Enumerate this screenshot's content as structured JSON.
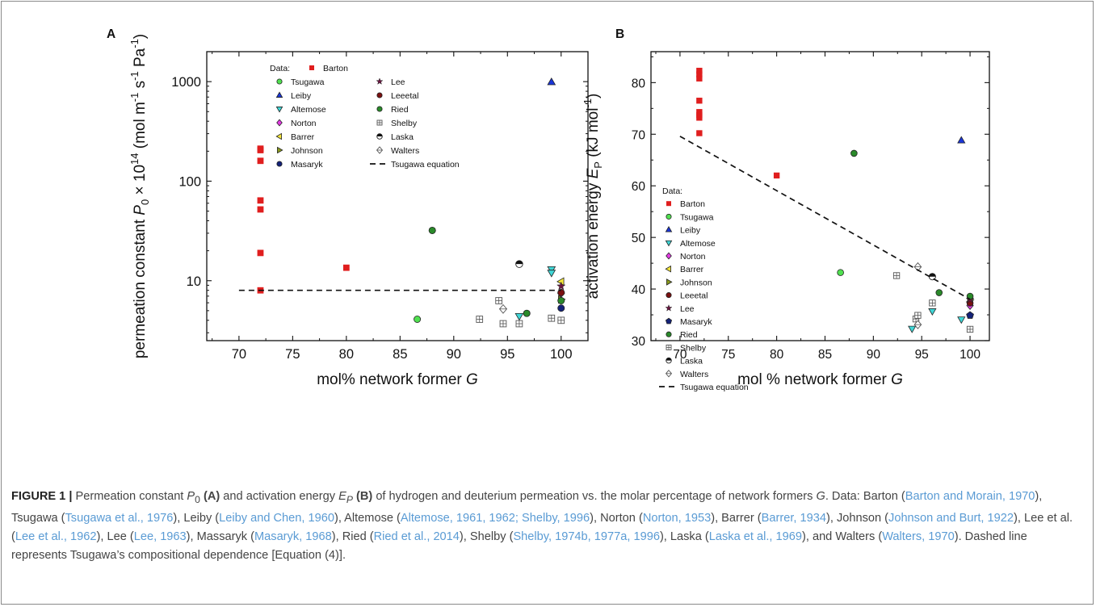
{
  "colors": {
    "Barton": "#e01e1e",
    "Tsugawa": "#50e050",
    "Leiby": "#1a35d8",
    "Altemose": "#3fd6d6",
    "Norton": "#e43be4",
    "Barrer": "#f5e63a",
    "Johnson": "#8a9a1e",
    "Masaryk": "#142278",
    "Lee": "#6a1640",
    "Leeetal": "#7a1010",
    "Ried": "#2a8a2a",
    "Shelby": "#ffffff",
    "Laska": "#ffffff",
    "Walters": "#ffffff",
    "caption_ref": "#5a9bd4"
  },
  "chart_data": [
    {
      "panel": "A",
      "type": "scatter",
      "y_scale": "log",
      "xlabel": "mol% network former G",
      "ylabel": "permeation constant P0 × 10^14 (mol m^-1 s^-1 Pa^-1)",
      "xlim": [
        67,
        102.5
      ],
      "ylim": [
        2.5,
        2000
      ],
      "x_ticks": [
        "70",
        "75",
        "80",
        "85",
        "90",
        "95",
        "100"
      ],
      "y_ticks": [
        "10",
        "100",
        "1000"
      ],
      "legend_position": "top-left",
      "legend_title": "Data:",
      "series": [
        {
          "name": "Barton",
          "marker": "square",
          "points": [
            [
              72,
              212
            ],
            [
              72,
              205
            ],
            [
              72,
              160
            ],
            [
              72,
              64
            ],
            [
              72,
              52
            ],
            [
              72,
              19
            ],
            [
              72,
              8
            ],
            [
              80,
              13.5
            ]
          ]
        },
        {
          "name": "Tsugawa",
          "marker": "circle",
          "points": [
            [
              86.6,
              4.1
            ]
          ]
        },
        {
          "name": "Leiby",
          "marker": "triangle-up",
          "points": [
            [
              99.1,
              990
            ]
          ]
        },
        {
          "name": "Altemose",
          "marker": "triangle-down",
          "points": [
            [
              99.1,
              13
            ],
            [
              99.1,
              12
            ],
            [
              96.1,
              4.4
            ]
          ]
        },
        {
          "name": "Norton",
          "marker": "diamond",
          "points": [
            [
              100,
              7.5
            ]
          ]
        },
        {
          "name": "Barrer",
          "marker": "triangle-left",
          "points": [
            [
              100,
              9.8
            ]
          ]
        },
        {
          "name": "Johnson",
          "marker": "triangle-right",
          "points": [
            [
              100,
              6.5
            ]
          ]
        },
        {
          "name": "Masaryk",
          "marker": "circle",
          "points": [
            [
              100,
              5.3
            ]
          ]
        },
        {
          "name": "Lee",
          "marker": "star",
          "points": [
            [
              100,
              8.8
            ]
          ]
        },
        {
          "name": "Leeetal",
          "marker": "circle",
          "points": [
            [
              100,
              7.6
            ]
          ]
        },
        {
          "name": "Ried",
          "marker": "circle",
          "points": [
            [
              88,
              32
            ],
            [
              96.8,
              4.7
            ],
            [
              100,
              6.3
            ]
          ]
        },
        {
          "name": "Shelby",
          "marker": "square-cross",
          "points": [
            [
              92.4,
              4.1
            ],
            [
              94.2,
              6.3
            ],
            [
              94.6,
              3.7
            ],
            [
              96.1,
              3.7
            ],
            [
              99.1,
              4.2
            ],
            [
              100,
              4.0
            ]
          ]
        },
        {
          "name": "Laska",
          "marker": "half-circle",
          "points": [
            [
              96.1,
              14.7
            ]
          ]
        },
        {
          "name": "Walters",
          "marker": "diamond-cross",
          "points": [
            [
              94.6,
              5.2
            ]
          ]
        },
        {
          "name": "Tsugawa equation",
          "marker": "dashed-line",
          "points": [
            [
              70,
              8.0
            ],
            [
              100,
              8.0
            ]
          ]
        }
      ]
    },
    {
      "panel": "B",
      "type": "scatter",
      "xlabel": "mol % network former G",
      "ylabel": "activation energy EP (kJ mol^-1)",
      "xlim": [
        67,
        102
      ],
      "ylim": [
        30,
        86
      ],
      "x_ticks": [
        "70",
        "75",
        "80",
        "85",
        "90",
        "95",
        "100"
      ],
      "y_ticks": [
        "30",
        "40",
        "50",
        "60",
        "70",
        "80"
      ],
      "legend_position": "bottom-left",
      "legend_title": "Data:",
      "series": [
        {
          "name": "Barton",
          "marker": "square",
          "points": [
            [
              72,
              82.3
            ],
            [
              72,
              81.6
            ],
            [
              72,
              80.8
            ],
            [
              72,
              76.5
            ],
            [
              72,
              74.3
            ],
            [
              72,
              73.7
            ],
            [
              72,
              73.2
            ],
            [
              72,
              70.2
            ],
            [
              80,
              62.0
            ]
          ]
        },
        {
          "name": "Tsugawa",
          "marker": "circle",
          "points": [
            [
              86.6,
              43.2
            ]
          ]
        },
        {
          "name": "Leiby",
          "marker": "triangle-up",
          "points": [
            [
              99.1,
              68.8
            ]
          ]
        },
        {
          "name": "Altemose",
          "marker": "triangle-down",
          "points": [
            [
              94,
              32.3
            ],
            [
              96.1,
              35.7
            ],
            [
              99.1,
              34.1
            ]
          ]
        },
        {
          "name": "Norton",
          "marker": "diamond",
          "points": [
            [
              100,
              36.8
            ]
          ]
        },
        {
          "name": "Barrer",
          "marker": "triangle-left",
          "points": [
            [
              100,
              37.5
            ]
          ]
        },
        {
          "name": "Johnson",
          "marker": "triangle-right",
          "points": [
            [
              100,
              37.9
            ]
          ]
        },
        {
          "name": "Leeetal",
          "marker": "circle",
          "points": [
            [
              100,
              37.3
            ]
          ]
        },
        {
          "name": "Lee",
          "marker": "star",
          "points": [
            [
              100,
              38.0
            ]
          ]
        },
        {
          "name": "Masaryk",
          "marker": "pentagon",
          "points": [
            [
              100,
              34.9
            ]
          ]
        },
        {
          "name": "Ried",
          "marker": "circle",
          "points": [
            [
              88,
              66.3
            ],
            [
              96.8,
              39.3
            ],
            [
              100,
              38.6
            ]
          ]
        },
        {
          "name": "Shelby",
          "marker": "square-cross",
          "points": [
            [
              92.4,
              42.6
            ],
            [
              94.4,
              34.2
            ],
            [
              94.6,
              34.9
            ],
            [
              96.1,
              37.3
            ],
            [
              100,
              32.2
            ]
          ]
        },
        {
          "name": "Laska",
          "marker": "half-circle",
          "points": [
            [
              96.1,
              42.4
            ]
          ]
        },
        {
          "name": "Walters",
          "marker": "diamond-cross",
          "points": [
            [
              94.6,
              44.3
            ],
            [
              94.6,
              33.1
            ]
          ]
        },
        {
          "name": "Tsugawa equation",
          "marker": "dashed-line",
          "points": [
            [
              70,
              69.6
            ],
            [
              100,
              38.0
            ]
          ]
        }
      ]
    }
  ],
  "caption": {
    "lead": "FIGURE 1 |",
    "segments": [
      {
        "t": " Permeation constant "
      },
      {
        "t": "P",
        "c": "it"
      },
      {
        "t": "0",
        "c": "sub"
      },
      {
        "t": " "
      },
      {
        "t": "(A)",
        "c": "b"
      },
      {
        "t": " and activation energy "
      },
      {
        "t": "E",
        "c": "it"
      },
      {
        "t": "P",
        "c": "sub it"
      },
      {
        "t": " "
      },
      {
        "t": "(B)",
        "c": "b"
      },
      {
        "t": " of hydrogen and deuterium permeation vs. the molar percentage of network formers "
      },
      {
        "t": "G",
        "c": "it"
      },
      {
        "t": ". Data: Barton ("
      },
      {
        "t": "Barton and Morain, 1970",
        "c": "ref"
      },
      {
        "t": "), Tsugawa ("
      },
      {
        "t": "Tsugawa et al., 1976",
        "c": "ref"
      },
      {
        "t": "), Leiby ("
      },
      {
        "t": "Leiby and Chen, 1960",
        "c": "ref"
      },
      {
        "t": "), Altemose ("
      },
      {
        "t": "Altemose, 1961, 1962; Shelby, 1996",
        "c": "ref"
      },
      {
        "t": "), Norton ("
      },
      {
        "t": "Norton, 1953",
        "c": "ref"
      },
      {
        "t": "), Barrer ("
      },
      {
        "t": "Barrer, 1934",
        "c": "ref"
      },
      {
        "t": "), Johnson ("
      },
      {
        "t": "Johnson and Burt, 1922",
        "c": "ref"
      },
      {
        "t": "), Lee et al. ("
      },
      {
        "t": "Lee et al., 1962",
        "c": "ref"
      },
      {
        "t": "), Lee ("
      },
      {
        "t": "Lee, 1963",
        "c": "ref"
      },
      {
        "t": "), Massaryk ("
      },
      {
        "t": "Masaryk, 1968",
        "c": "ref"
      },
      {
        "t": "), Ried ("
      },
      {
        "t": "Ried et al., 2014",
        "c": "ref"
      },
      {
        "t": "), Shelby ("
      },
      {
        "t": "Shelby, 1974b, 1977a, 1996",
        "c": "ref"
      },
      {
        "t": "), Laska ("
      },
      {
        "t": "Laska et al., 1969",
        "c": "ref"
      },
      {
        "t": "), and Walters ("
      },
      {
        "t": "Walters, 1970",
        "c": "ref"
      },
      {
        "t": "). Dashed line represents Tsugawa’s compositional dependence [Equation (4)]."
      }
    ]
  }
}
